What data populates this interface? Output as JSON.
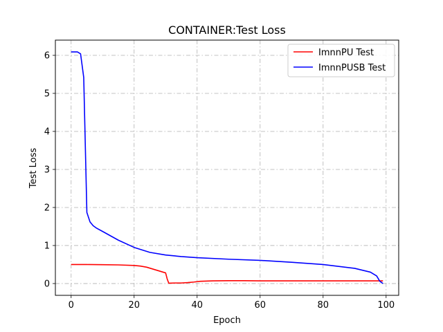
{
  "chart_data": {
    "type": "line",
    "title": "CONTAINER:Test Loss",
    "xlabel": "Epoch",
    "ylabel": "Test Loss",
    "xlim": [
      -5,
      104
    ],
    "ylim": [
      -0.31,
      6.4
    ],
    "xticks": [
      0,
      20,
      40,
      60,
      80,
      100
    ],
    "yticks": [
      0,
      1,
      2,
      3,
      4,
      5,
      6
    ],
    "grid": true,
    "grid_style": "dashdot",
    "legend_position": "top-right",
    "series": [
      {
        "name": "ImnnPU Test",
        "color": "#ff0000",
        "x": [
          0,
          5,
          10,
          15,
          20,
          22,
          24,
          26,
          28,
          30,
          30.5,
          31,
          33,
          35,
          37,
          39,
          41,
          45,
          50,
          55,
          60,
          70,
          80,
          90,
          99
        ],
        "y": [
          0.5,
          0.5,
          0.495,
          0.49,
          0.475,
          0.46,
          0.43,
          0.38,
          0.33,
          0.28,
          0.12,
          0.01,
          0.015,
          0.015,
          0.025,
          0.04,
          0.06,
          0.07,
          0.075,
          0.075,
          0.07,
          0.07,
          0.07,
          0.07,
          0.07
        ]
      },
      {
        "name": "ImnnPUSB Test",
        "color": "#0000ff",
        "x": [
          0,
          1,
          2,
          3,
          4,
          5,
          6,
          7,
          8,
          10,
          15,
          20,
          25,
          30,
          35,
          40,
          50,
          60,
          70,
          80,
          90,
          95,
          97,
          98,
          99
        ],
        "y": [
          6.09,
          6.09,
          6.09,
          6.04,
          5.42,
          1.87,
          1.62,
          1.52,
          1.46,
          1.37,
          1.14,
          0.95,
          0.82,
          0.75,
          0.71,
          0.68,
          0.64,
          0.61,
          0.56,
          0.5,
          0.4,
          0.3,
          0.2,
          0.06,
          0.0
        ]
      }
    ]
  }
}
